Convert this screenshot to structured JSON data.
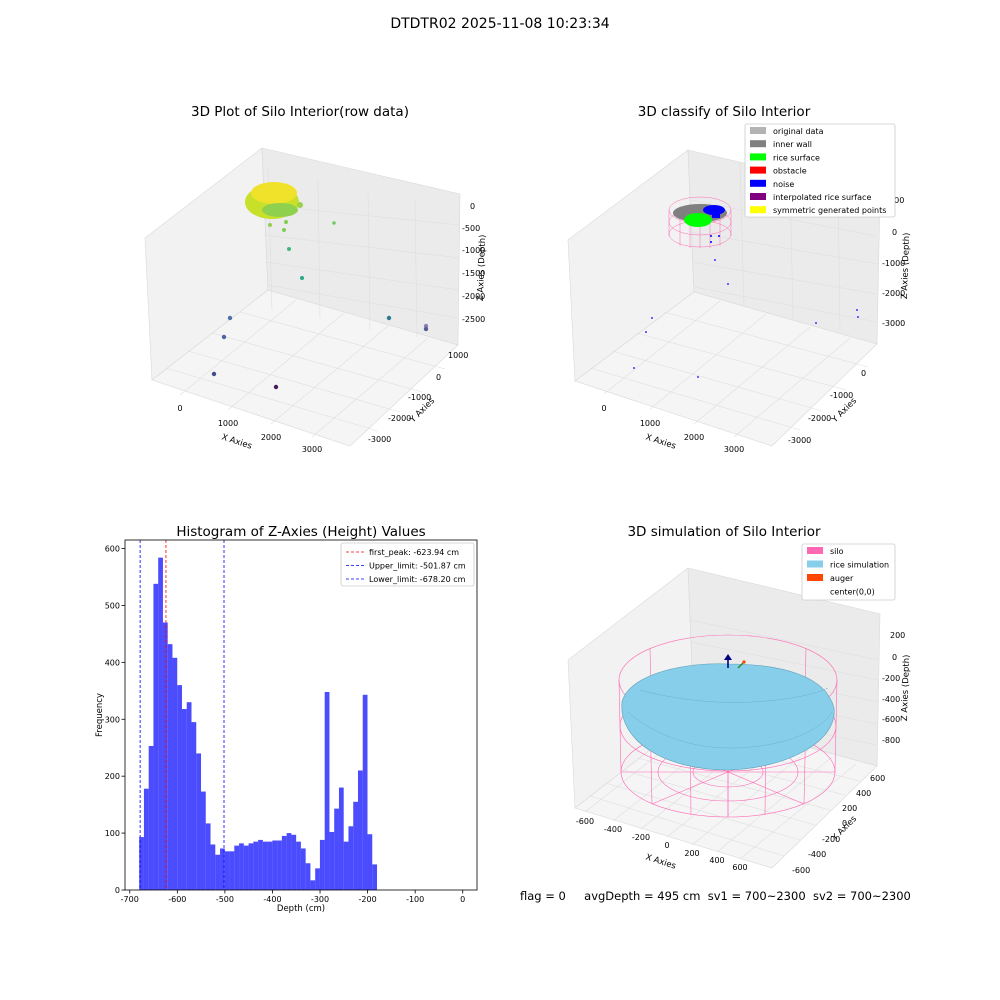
{
  "figure": {
    "suptitle": "DTDTR02 2025-11-08 10:23:34",
    "status": {
      "flag": "flag = 0",
      "avg_depth": "avgDepth = 495 cm",
      "sv1": "sv1 = 700~2300",
      "sv2": "sv2 = 700~2300"
    }
  },
  "panels": {
    "raw": {
      "title": "3D Plot of Silo Interior(row data)",
      "xlabel": "X Axies",
      "ylabel": "Y Axies",
      "zlabel": "Z Axies (Depth)",
      "xticks": [
        "0",
        "1000",
        "2000",
        "3000"
      ],
      "yticks": [
        "-3000",
        "-2000",
        "-1000",
        "0",
        "1000"
      ],
      "zticks": [
        "-2500",
        "-2000",
        "-1500",
        "-1000",
        "-500",
        "0"
      ]
    },
    "classify": {
      "title": "3D classify of Silo Interior",
      "xlabel": "X Axies",
      "ylabel": "Y Axies",
      "zlabel": "Z Axies (Depth)",
      "xticks": [
        "0",
        "1000",
        "2000",
        "3000"
      ],
      "yticks": [
        "-3000",
        "-2000",
        "-1000",
        "0"
      ],
      "zticks": [
        "-3000",
        "-2000",
        "-1000",
        "0",
        "1000"
      ],
      "legend": [
        {
          "label": "original data",
          "color": "#b3b3b3"
        },
        {
          "label": "inner wall",
          "color": "#808080"
        },
        {
          "label": "rice surface",
          "color": "#00ff00"
        },
        {
          "label": "obstacle",
          "color": "#ff0000"
        },
        {
          "label": "noise",
          "color": "#0000ff"
        },
        {
          "label": "interpolated rice surface",
          "color": "#800080"
        },
        {
          "label": "symmetric generated points",
          "color": "#ffff00"
        }
      ]
    },
    "simulation": {
      "title": "3D simulation of Silo Interior",
      "xlabel": "X Axies",
      "ylabel": "Y Axies",
      "zlabel": "Z Axies (Depth)",
      "xticks": [
        "-600",
        "-400",
        "-200",
        "0",
        "200",
        "400",
        "600"
      ],
      "yticks": [
        "-600",
        "-400",
        "-200",
        "0",
        "200",
        "400",
        "600"
      ],
      "zticks": [
        "-800",
        "-600",
        "-400",
        "-200",
        "0",
        "200"
      ],
      "legend": [
        {
          "label": "silo",
          "color": "#ff69b4"
        },
        {
          "label": "rice simulation",
          "color": "#87ceeb"
        },
        {
          "label": "auger",
          "color": "#ff4500"
        },
        {
          "label": "center(0,0)",
          "color": ""
        }
      ]
    }
  },
  "chart_data": {
    "type": "bar",
    "title": "Histogram of Z-Axies (Height) Values",
    "xlabel": "Depth (cm)",
    "ylabel": "Frequency",
    "xlim": [
      -710,
      30
    ],
    "ylim": [
      0,
      615
    ],
    "xticks": [
      -700,
      -600,
      -500,
      -400,
      -300,
      -200,
      -100,
      0
    ],
    "yticks": [
      0,
      100,
      200,
      300,
      400,
      500,
      600
    ],
    "bin_start": -680.2,
    "bin_width": 10,
    "counts": [
      93,
      178,
      253,
      538,
      584,
      470,
      432,
      408,
      360,
      318,
      330,
      295,
      240,
      173,
      117,
      80,
      62,
      73,
      68,
      68,
      78,
      82,
      78,
      82,
      85,
      88,
      85,
      85,
      87,
      87,
      95,
      100,
      97,
      85,
      73,
      47,
      17,
      38,
      88,
      348,
      102,
      143,
      180,
      85,
      112,
      155,
      210,
      343,
      98,
      45
    ],
    "bar_color": "#0000ff",
    "lines": [
      {
        "label": "first_peak: -623.94 cm",
        "x": -623.94,
        "color": "#ff0000"
      },
      {
        "label": "Upper_limit: -501.87 cm",
        "x": -501.87,
        "color": "#0000ff"
      },
      {
        "label": "Lower_limit: -678.20 cm",
        "x": -678.2,
        "color": "#0000ff"
      }
    ],
    "legend_position": "top-right"
  }
}
